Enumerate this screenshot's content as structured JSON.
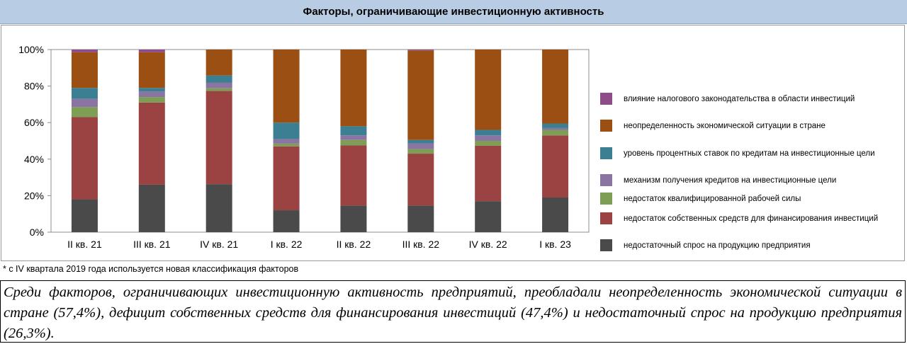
{
  "title": "Факторы, ограничивающие инвестиционную активность",
  "chart_data": {
    "type": "bar",
    "stacked": true,
    "categories": [
      "II кв. 21",
      "III кв. 21",
      "IV кв. 21",
      "I кв. 22",
      "II кв. 22",
      "III кв. 22",
      "IV кв. 22",
      "I кв. 23"
    ],
    "y_ticks": [
      "0%",
      "20%",
      "40%",
      "60%",
      "80%",
      "100%"
    ],
    "ylim": [
      0,
      100
    ],
    "legend_position": "right",
    "series": [
      {
        "name": "недостаточный спрос на продукцию предприятия",
        "color": "#4a4a4a",
        "values": [
          18,
          26,
          26.3,
          12,
          14.5,
          14.5,
          17,
          19
        ]
      },
      {
        "name": "недостаток собственных средств для финансирования инвестиций",
        "color": "#9b4343",
        "values": [
          45,
          45,
          51,
          35,
          33,
          28.5,
          30.4,
          34
        ]
      },
      {
        "name": "недостаток квалифицированной рабочей силы",
        "color": "#7e9e55",
        "values": [
          5.5,
          3,
          1.5,
          1.5,
          3,
          2.5,
          2.6,
          3
        ]
      },
      {
        "name": "механизм получения кредитов на инвестиционные цели",
        "color": "#8a74a2",
        "values": [
          4.5,
          3,
          3,
          2.5,
          2.5,
          3,
          3,
          1
        ]
      },
      {
        "name": "уровень процентных ставок по кредитам на инвестиционные цели",
        "color": "#3d7f92",
        "values": [
          6,
          2,
          4,
          9,
          5,
          2,
          3,
          2.5
        ]
      },
      {
        "name": "неопределенность экономической ситуации в стране",
        "color": "#9c4f12",
        "values": [
          19.5,
          19.5,
          14.2,
          40,
          42,
          49,
          44,
          40.5
        ]
      },
      {
        "name": "влияние налогового законодательства в области инвестиций",
        "color": "#8e4d88",
        "values": [
          1.5,
          1.5,
          0,
          0,
          0,
          0.5,
          0,
          0
        ]
      }
    ]
  },
  "footnote": "* с IV квартала 2019 года используется новая классификация факторов",
  "summary": "Среди факторов, ограничивающих инвестиционную активность предприятий, преобладали неопределенность экономической ситуации в стране (57,4%), дефицит собственных средств для финансирования инвестиций (47,4%) и недостаточный спрос на продукцию предприятия (26,3%)."
}
